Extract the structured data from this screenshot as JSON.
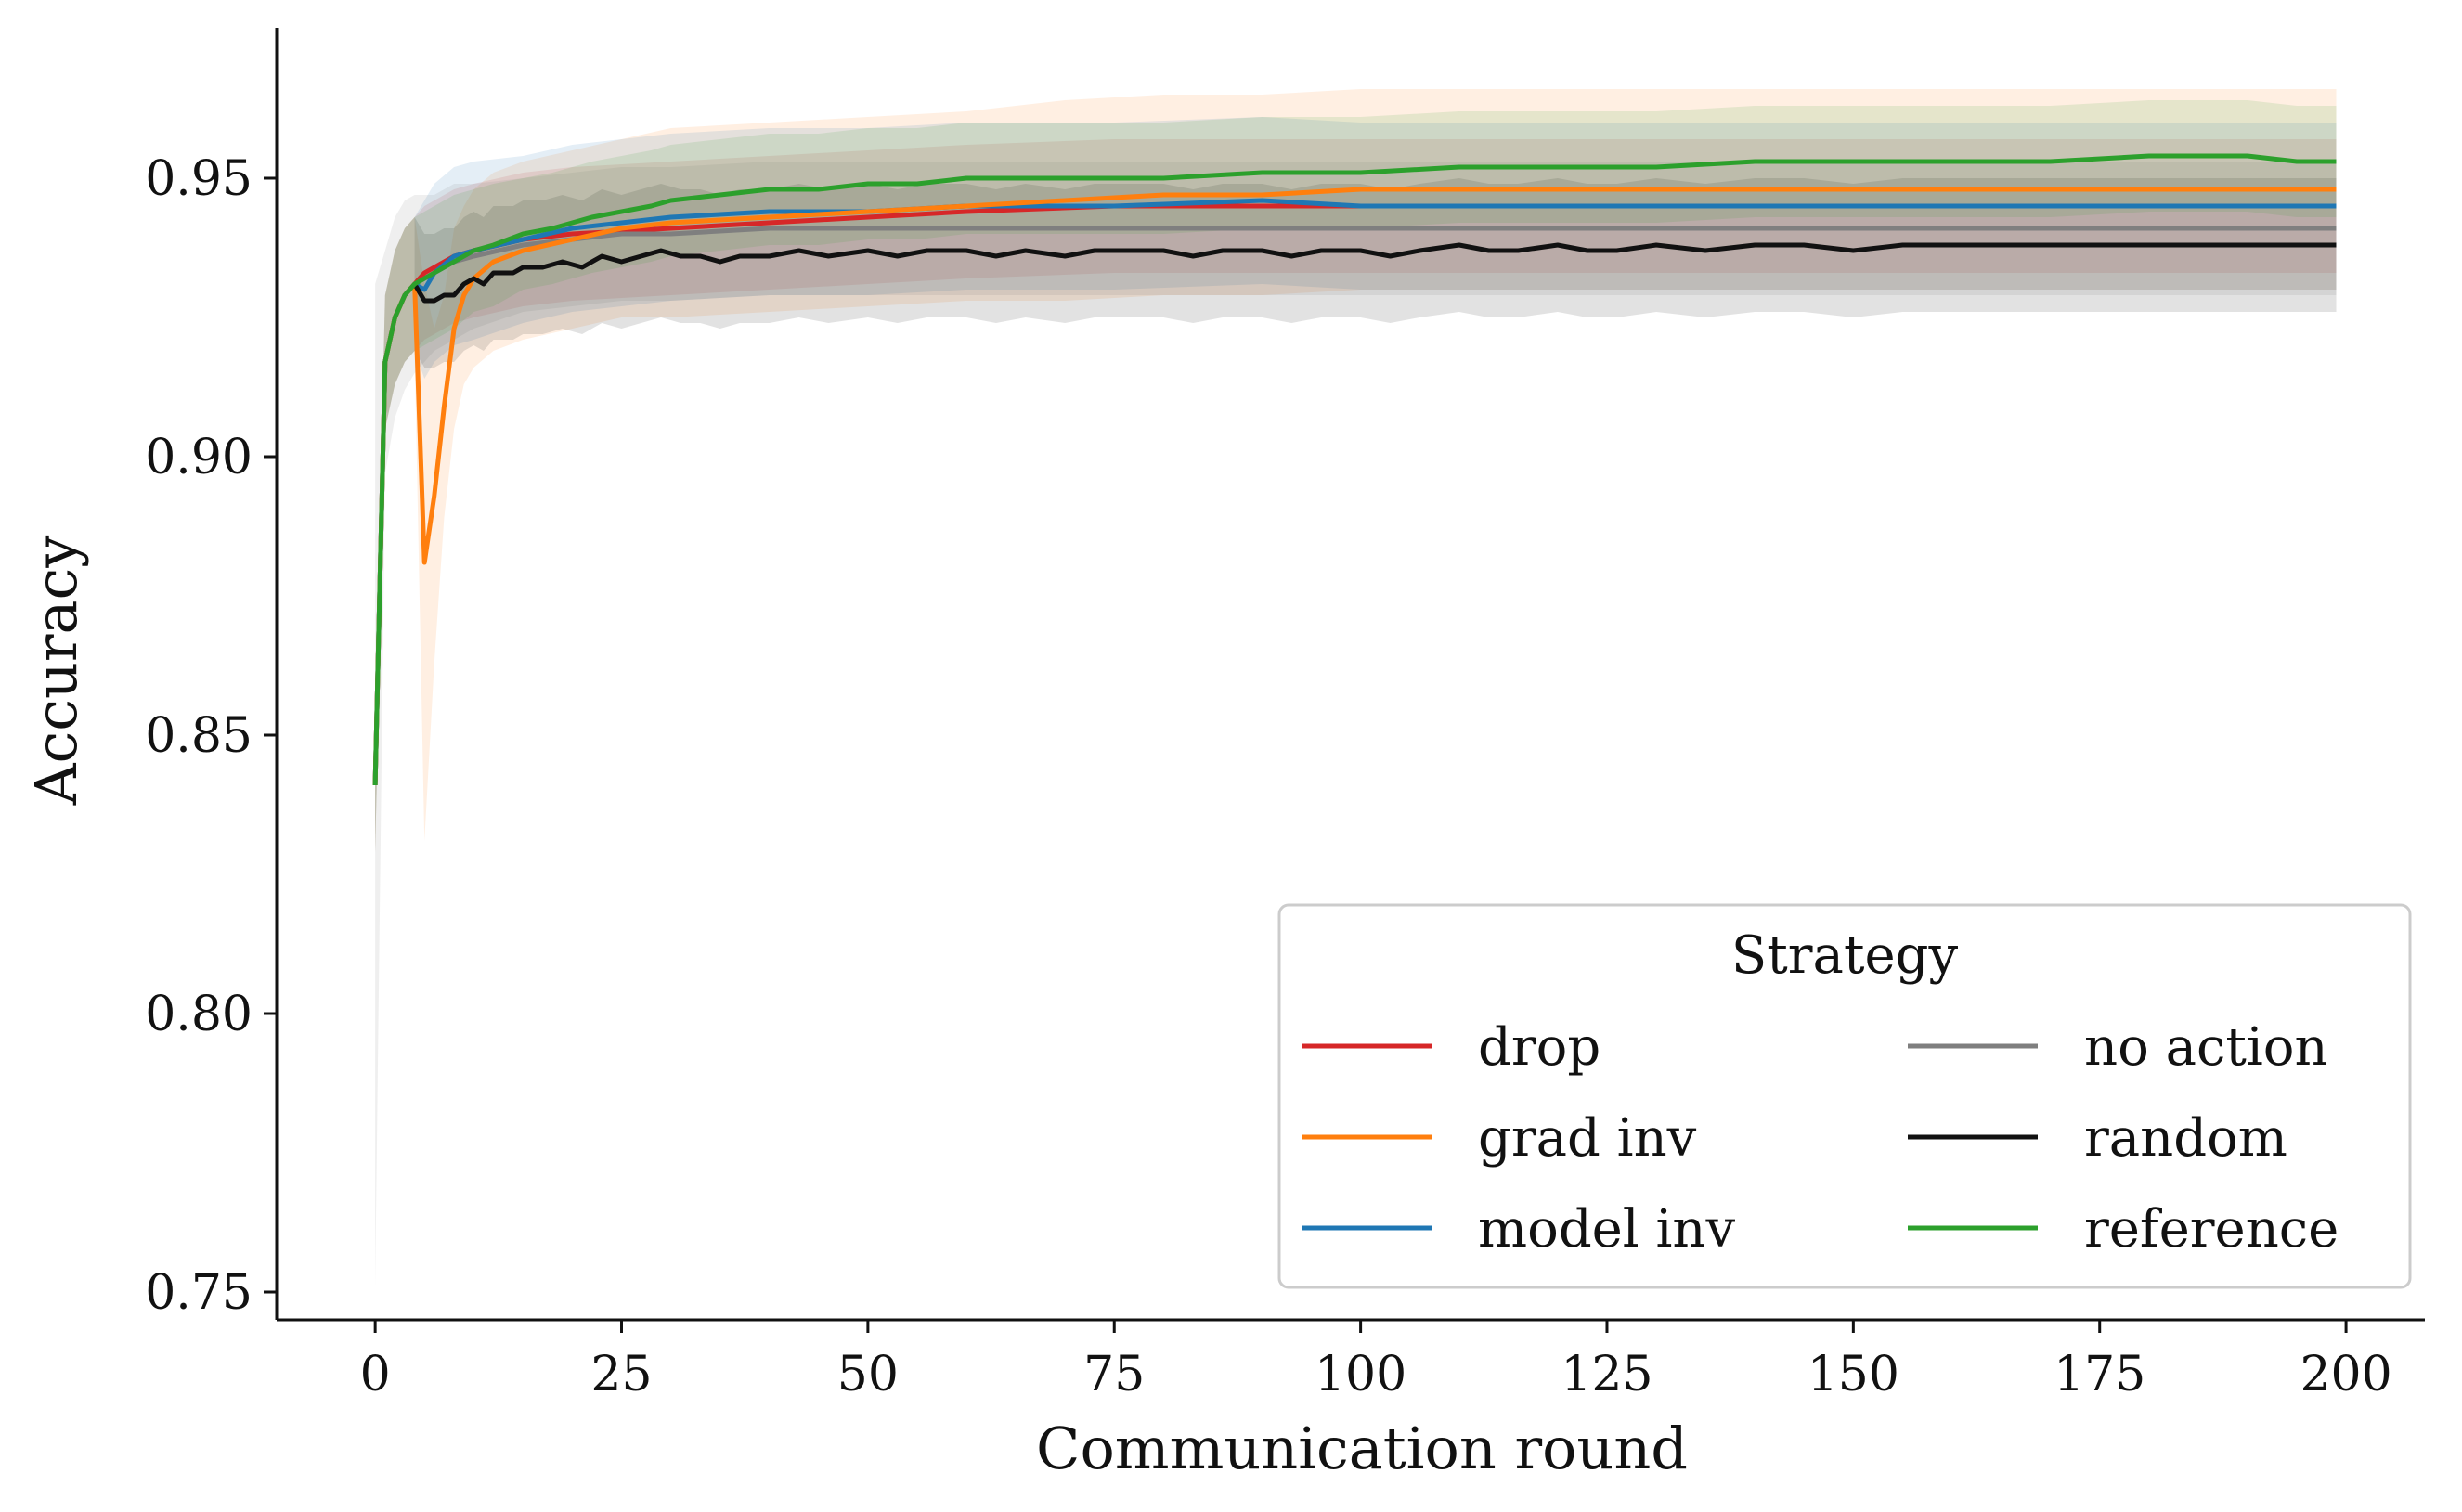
{
  "chart_data": {
    "type": "line",
    "title": "",
    "xlabel": "Communication round",
    "ylabel": "Accuracy",
    "xlim": [
      -10,
      208
    ],
    "ylim": [
      0.745,
      0.977
    ],
    "xticks": [
      0,
      25,
      50,
      75,
      100,
      125,
      150,
      175,
      200
    ],
    "xtick_labels": [
      "0",
      "25",
      "50",
      "75",
      "100",
      "125",
      "150",
      "175",
      "200"
    ],
    "yticks": [
      0.75,
      0.8,
      0.85,
      0.9,
      0.95
    ],
    "ytick_labels": [
      "0.75",
      "0.80",
      "0.85",
      "0.90",
      "0.95"
    ],
    "grid": false,
    "legend": {
      "title": "Strategy",
      "position": "lower-right",
      "columns": 2
    },
    "series": [
      {
        "name": "drop",
        "color": "#d62728",
        "x": [
          0,
          1,
          2,
          3,
          4,
          5,
          6,
          8,
          10,
          15,
          20,
          30,
          40,
          50,
          60,
          75,
          100,
          125,
          150,
          175,
          199
        ],
        "values": [
          0.841,
          0.917,
          0.925,
          0.929,
          0.931,
          0.933,
          0.934,
          0.936,
          0.937,
          0.939,
          0.94,
          0.941,
          0.942,
          0.943,
          0.944,
          0.945,
          0.945,
          0.945,
          0.945,
          0.945,
          0.945
        ],
        "band": [
          0.012,
          0.012,
          0.012,
          0.012,
          0.012,
          0.012,
          0.012,
          0.012,
          0.012,
          0.012,
          0.012,
          0.012,
          0.012,
          0.012,
          0.012,
          0.012,
          0.012,
          0.012,
          0.012,
          0.012,
          0.012
        ]
      },
      {
        "name": "grad inv",
        "color": "#ff7f0e",
        "x": [
          0,
          1,
          2,
          3,
          4,
          5,
          6,
          7,
          8,
          9,
          10,
          12,
          15,
          20,
          25,
          30,
          40,
          50,
          60,
          70,
          80,
          90,
          100,
          110,
          125,
          150,
          175,
          199
        ],
        "values": [
          0.841,
          0.917,
          0.925,
          0.929,
          0.931,
          0.881,
          0.893,
          0.909,
          0.923,
          0.929,
          0.932,
          0.935,
          0.937,
          0.939,
          0.941,
          0.942,
          0.943,
          0.944,
          0.945,
          0.946,
          0.947,
          0.947,
          0.948,
          0.948,
          0.948,
          0.948,
          0.948,
          0.948
        ],
        "band": [
          0.012,
          0.012,
          0.012,
          0.012,
          0.012,
          0.05,
          0.03,
          0.02,
          0.018,
          0.016,
          0.016,
          0.016,
          0.016,
          0.016,
          0.016,
          0.017,
          0.017,
          0.017,
          0.017,
          0.018,
          0.018,
          0.018,
          0.018,
          0.018,
          0.018,
          0.018,
          0.018,
          0.018
        ]
      },
      {
        "name": "model inv",
        "color": "#1f77b4",
        "x": [
          0,
          1,
          2,
          3,
          4,
          5,
          6,
          8,
          10,
          15,
          20,
          25,
          30,
          40,
          50,
          60,
          75,
          90,
          100,
          125,
          150,
          175,
          199
        ],
        "values": [
          0.841,
          0.917,
          0.925,
          0.929,
          0.931,
          0.93,
          0.933,
          0.936,
          0.937,
          0.939,
          0.941,
          0.942,
          0.943,
          0.944,
          0.944,
          0.945,
          0.945,
          0.946,
          0.945,
          0.945,
          0.945,
          0.945,
          0.945
        ],
        "band": [
          0.012,
          0.012,
          0.012,
          0.012,
          0.012,
          0.016,
          0.016,
          0.016,
          0.016,
          0.015,
          0.015,
          0.015,
          0.015,
          0.015,
          0.015,
          0.015,
          0.015,
          0.015,
          0.015,
          0.015,
          0.015,
          0.015,
          0.015
        ]
      },
      {
        "name": "no action",
        "color": "#7f7f7f",
        "x": [
          0,
          1,
          2,
          3,
          4,
          5,
          6,
          8,
          10,
          15,
          20,
          25,
          30,
          40,
          50,
          60,
          75,
          100,
          125,
          150,
          175,
          199
        ],
        "values": [
          0.841,
          0.917,
          0.925,
          0.929,
          0.931,
          0.932,
          0.933,
          0.935,
          0.936,
          0.938,
          0.939,
          0.94,
          0.94,
          0.941,
          0.941,
          0.941,
          0.941,
          0.941,
          0.941,
          0.941,
          0.941,
          0.941
        ],
        "band": [
          0.09,
          0.02,
          0.018,
          0.017,
          0.016,
          0.015,
          0.014,
          0.014,
          0.013,
          0.012,
          0.012,
          0.012,
          0.012,
          0.012,
          0.012,
          0.012,
          0.012,
          0.012,
          0.012,
          0.012,
          0.012,
          0.012
        ]
      },
      {
        "name": "random",
        "color": "#111111",
        "x": [
          4,
          5,
          6,
          7,
          8,
          9,
          10,
          11,
          12,
          13,
          14,
          15,
          17,
          19,
          21,
          23,
          25,
          27,
          29,
          31,
          33,
          35,
          37,
          40,
          43,
          46,
          50,
          53,
          56,
          60,
          63,
          66,
          70,
          73,
          76,
          80,
          83,
          86,
          90,
          93,
          96,
          100,
          103,
          106,
          110,
          113,
          116,
          120,
          123,
          126,
          130,
          135,
          140,
          145,
          150,
          155,
          160,
          165,
          170,
          175,
          180,
          185,
          190,
          195,
          199
        ],
        "values": [
          0.931,
          0.928,
          0.928,
          0.929,
          0.929,
          0.931,
          0.932,
          0.931,
          0.933,
          0.933,
          0.933,
          0.934,
          0.934,
          0.935,
          0.934,
          0.936,
          0.935,
          0.936,
          0.937,
          0.936,
          0.936,
          0.935,
          0.936,
          0.936,
          0.937,
          0.936,
          0.937,
          0.936,
          0.937,
          0.937,
          0.936,
          0.937,
          0.936,
          0.937,
          0.937,
          0.937,
          0.936,
          0.937,
          0.937,
          0.936,
          0.937,
          0.937,
          0.936,
          0.937,
          0.938,
          0.937,
          0.937,
          0.938,
          0.937,
          0.937,
          0.938,
          0.937,
          0.938,
          0.938,
          0.937,
          0.938,
          0.938,
          0.938,
          0.938,
          0.938,
          0.938,
          0.938,
          0.938,
          0.938,
          0.938
        ],
        "band": [
          0.012,
          0.012,
          0.012,
          0.012,
          0.012,
          0.012,
          0.012,
          0.012,
          0.012,
          0.012,
          0.012,
          0.012,
          0.012,
          0.012,
          0.012,
          0.012,
          0.012,
          0.012,
          0.012,
          0.012,
          0.012,
          0.012,
          0.012,
          0.012,
          0.012,
          0.012,
          0.012,
          0.012,
          0.012,
          0.012,
          0.012,
          0.012,
          0.012,
          0.012,
          0.012,
          0.012,
          0.012,
          0.012,
          0.012,
          0.012,
          0.012,
          0.012,
          0.012,
          0.012,
          0.012,
          0.012,
          0.012,
          0.012,
          0.012,
          0.012,
          0.012,
          0.012,
          0.012,
          0.012,
          0.012,
          0.012,
          0.012,
          0.012,
          0.012,
          0.012,
          0.012,
          0.012,
          0.012,
          0.012,
          0.012
        ]
      },
      {
        "name": "reference",
        "color": "#2ca02c",
        "x": [
          0,
          1,
          2,
          3,
          4,
          5,
          6,
          8,
          10,
          12,
          15,
          18,
          20,
          22,
          25,
          28,
          30,
          35,
          40,
          45,
          50,
          55,
          60,
          65,
          70,
          75,
          80,
          90,
          100,
          110,
          120,
          130,
          140,
          150,
          160,
          170,
          180,
          190,
          195,
          199
        ],
        "values": [
          0.841,
          0.917,
          0.925,
          0.929,
          0.931,
          0.932,
          0.933,
          0.935,
          0.937,
          0.938,
          0.94,
          0.941,
          0.942,
          0.943,
          0.944,
          0.945,
          0.946,
          0.947,
          0.948,
          0.948,
          0.949,
          0.949,
          0.95,
          0.95,
          0.95,
          0.95,
          0.95,
          0.951,
          0.951,
          0.952,
          0.952,
          0.952,
          0.953,
          0.953,
          0.953,
          0.953,
          0.954,
          0.954,
          0.953,
          0.953
        ],
        "band": [
          0.012,
          0.012,
          0.012,
          0.012,
          0.012,
          0.012,
          0.012,
          0.012,
          0.011,
          0.011,
          0.01,
          0.01,
          0.01,
          0.01,
          0.01,
          0.01,
          0.01,
          0.01,
          0.01,
          0.01,
          0.01,
          0.01,
          0.01,
          0.01,
          0.01,
          0.01,
          0.01,
          0.01,
          0.01,
          0.01,
          0.01,
          0.01,
          0.01,
          0.01,
          0.01,
          0.01,
          0.01,
          0.01,
          0.01,
          0.01
        ]
      }
    ]
  }
}
